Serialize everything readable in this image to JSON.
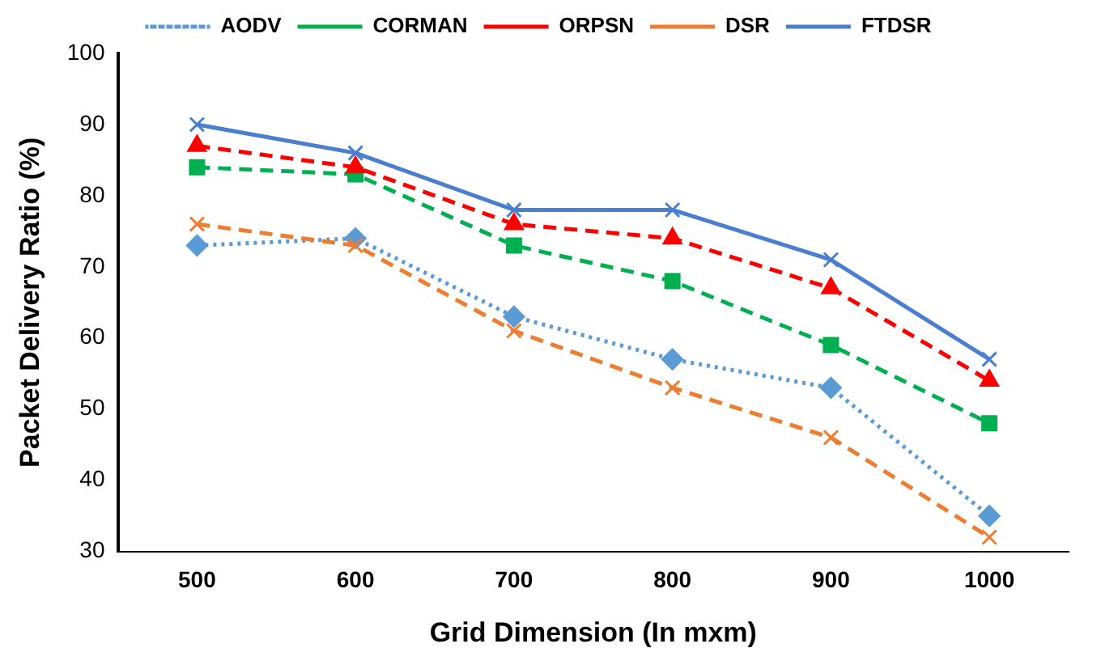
{
  "chart_data": {
    "type": "line",
    "xlabel": "Grid Dimension (In mxm)",
    "ylabel": "Packet Delivery Ratio (%)",
    "categories": [
      "500",
      "600",
      "700",
      "800",
      "900",
      "1000"
    ],
    "series": [
      {
        "name": "AODV",
        "color": "#5b9bd5",
        "values": [
          73,
          74,
          63,
          57,
          53,
          35
        ],
        "marker": "diamond",
        "line_style": "dotted"
      },
      {
        "name": "CORMAN",
        "color": "#00b050",
        "values": [
          84,
          83,
          73,
          68,
          59,
          48
        ],
        "marker": "square",
        "line_style": "dashed"
      },
      {
        "name": "ORPSN",
        "color": "#ff0000",
        "values": [
          87,
          84,
          76,
          74,
          67,
          54
        ],
        "marker": "triangle",
        "line_style": "dashed"
      },
      {
        "name": "DSR",
        "color": "#ed7d31",
        "values": [
          76,
          73,
          61,
          53,
          46,
          32
        ],
        "marker": "cross",
        "line_style": "dashed"
      },
      {
        "name": "FTDSR",
        "color": "#4a7fd0",
        "values": [
          90,
          86,
          78,
          78,
          71,
          57
        ],
        "marker": "cross",
        "line_style": "solid"
      }
    ],
    "ylim": [
      30,
      100
    ],
    "yticks": [
      30,
      40,
      50,
      60,
      70,
      80,
      90,
      100
    ],
    "grid": false,
    "legend": "top"
  }
}
